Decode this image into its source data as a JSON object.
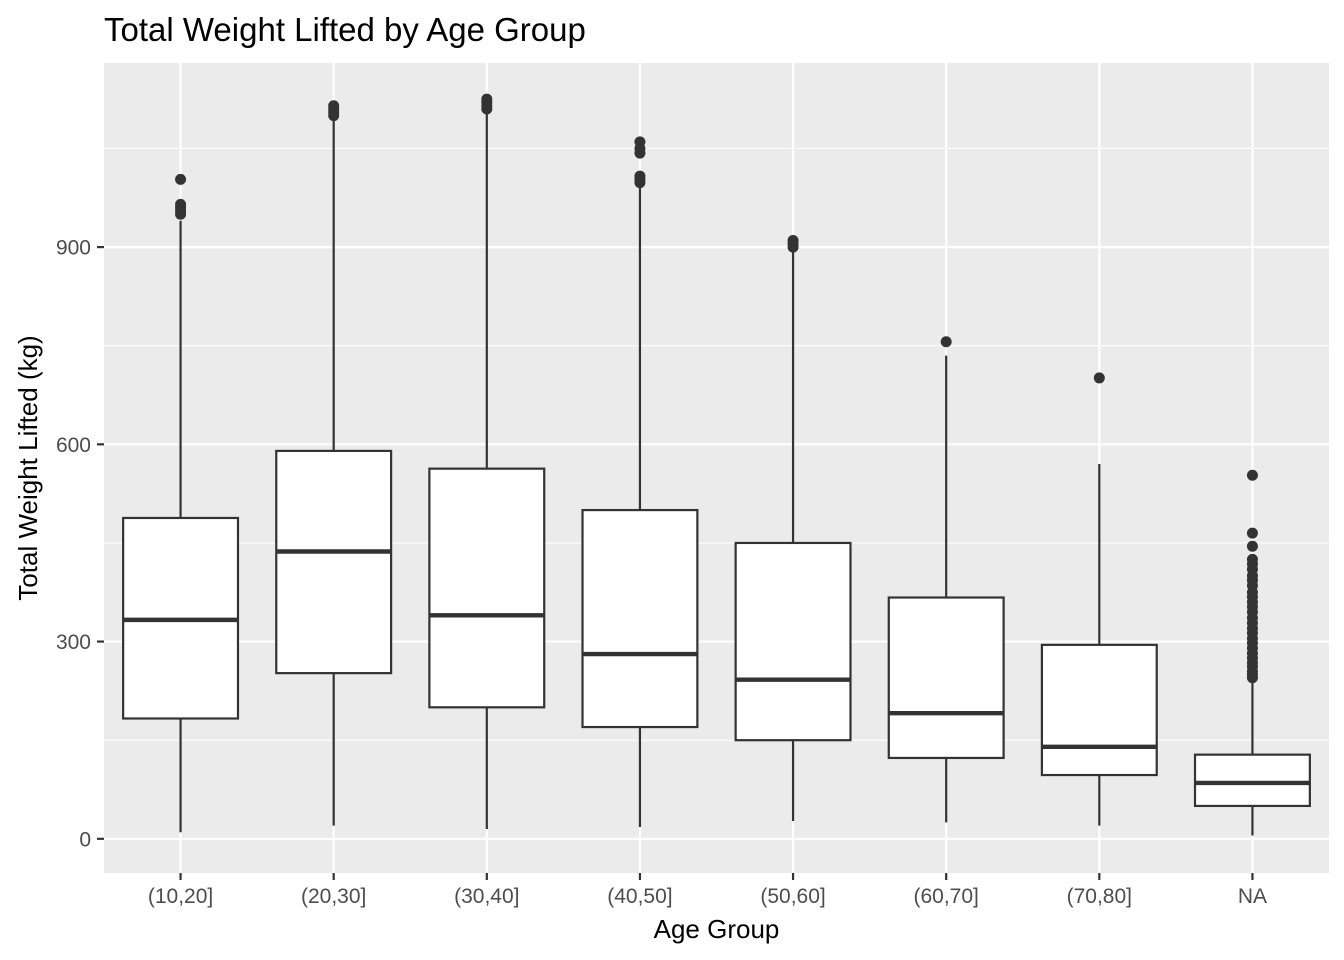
{
  "chart_data": {
    "type": "box",
    "title": "Total Weight Lifted by Age Group",
    "xlabel": "Age Group",
    "ylabel": "Total Weight Lifted (kg)",
    "ylim": [
      -52,
      1180
    ],
    "yticks": [
      0,
      300,
      600,
      900
    ],
    "grid": true,
    "legend": "none",
    "colors": {
      "panel": "#ebebeb",
      "grid": "#ffffff",
      "box_fill": "#ffffff",
      "box_stroke": "#333333",
      "tick": "#333333"
    },
    "categories": [
      "(10,20]",
      "(20,30]",
      "(30,40]",
      "(40,50]",
      "(50,60]",
      "(60,70]",
      "(70,80]",
      "NA"
    ],
    "boxes": [
      {
        "category": "(10,20]",
        "whisker_low": 10,
        "q1": 183,
        "median": 333,
        "q3": 488,
        "whisker_high": 940,
        "outliers": [
          950,
          955,
          960,
          965,
          1003
        ]
      },
      {
        "category": "(20,30]",
        "whisker_low": 20,
        "q1": 252,
        "median": 437,
        "q3": 590,
        "whisker_high": 1095,
        "outliers": [
          1100,
          1105,
          1110,
          1115
        ]
      },
      {
        "category": "(30,40]",
        "whisker_low": 15,
        "q1": 200,
        "median": 340,
        "q3": 563,
        "whisker_high": 1105,
        "outliers": [
          1110,
          1115,
          1120,
          1125
        ]
      },
      {
        "category": "(40,50]",
        "whisker_low": 18,
        "q1": 170,
        "median": 281,
        "q3": 500,
        "whisker_high": 992,
        "outliers": [
          998,
          1003,
          1008,
          1043,
          1050,
          1060
        ]
      },
      {
        "category": "(50,60]",
        "whisker_low": 27,
        "q1": 150,
        "median": 242,
        "q3": 450,
        "whisker_high": 895,
        "outliers": [
          900,
          905,
          910
        ]
      },
      {
        "category": "(60,70]",
        "whisker_low": 25,
        "q1": 123,
        "median": 191,
        "q3": 367,
        "whisker_high": 735,
        "outliers": [
          756
        ]
      },
      {
        "category": "(70,80]",
        "whisker_low": 20,
        "q1": 97,
        "median": 140,
        "q3": 295,
        "whisker_high": 570,
        "outliers": [
          701
        ]
      },
      {
        "category": "NA",
        "whisker_low": 5,
        "q1": 50,
        "median": 85,
        "q3": 128,
        "whisker_high": 240,
        "outliers": [
          245,
          250,
          255,
          262,
          268,
          275,
          282,
          290,
          298,
          305,
          313,
          320,
          328,
          336,
          345,
          353,
          360,
          368,
          375,
          385,
          393,
          400,
          410,
          418,
          425,
          445,
          465,
          553
        ]
      }
    ]
  }
}
